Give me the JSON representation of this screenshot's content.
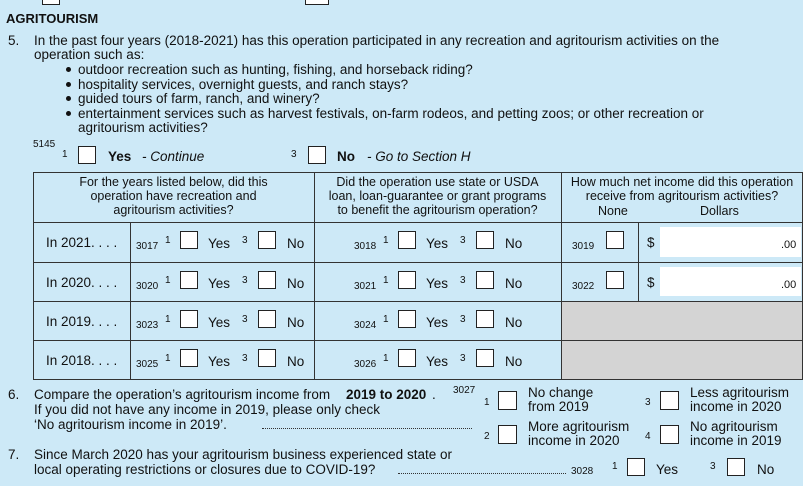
{
  "section_title": "AGRITOURISM",
  "q5": {
    "number": "5.",
    "lines": [
      "In the past four years (2018-2021) has this operation participated in any recreation and agritourism activities on the",
      "operation such as:"
    ],
    "bullets": [
      [
        "outdoor recreation such as hunting, fishing, and horseback riding?"
      ],
      [
        "hospitality services, overnight guests, and ranch stays?"
      ],
      [
        "guided tours of farm, ranch, and winery?"
      ],
      [
        "entertainment services such as harvest festivals, on-farm rodeos, and petting zoos; or other recreation or",
        "agritourism activities?"
      ]
    ],
    "code": "5145",
    "options": [
      {
        "number": "1",
        "label": "Yes",
        "note": "- Continue"
      },
      {
        "number": "3",
        "label": "No",
        "note": "- Go to Section H"
      }
    ]
  },
  "table": {
    "headers": [
      [
        "For the years listed below, did this",
        "operation have recreation and",
        "agritourism activities?"
      ],
      [
        "Did the operation use state or USDA",
        "loan, loan-guarantee or grant programs",
        "to benefit the agritourism operation?"
      ],
      [
        "How much net income did this operation",
        "receive from agritourism activities?"
      ]
    ],
    "subheaders": [
      "None",
      "Dollars"
    ],
    "rows": [
      {
        "label": "In 2021. . . .",
        "recreation": {
          "code": "3017",
          "yes_number": "1",
          "yes": "Yes",
          "no_number": "3",
          "no": "No"
        },
        "assistance": {
          "code": "3018",
          "yes_number": "1",
          "yes": "Yes",
          "no_number": "3",
          "no": "No"
        },
        "income": {
          "code": "3019",
          "currency": "$",
          "cents": ".00"
        }
      },
      {
        "label": "In 2020. . . .",
        "recreation": {
          "code": "3020",
          "yes_number": "1",
          "yes": "Yes",
          "no_number": "3",
          "no": "No"
        },
        "assistance": {
          "code": "3021",
          "yes_number": "1",
          "yes": "Yes",
          "no_number": "3",
          "no": "No"
        },
        "income": {
          "code": "3022",
          "currency": "$",
          "cents": ".00"
        }
      },
      {
        "label": "In 2019. . . .",
        "recreation": {
          "code": "3023",
          "yes_number": "1",
          "yes": "Yes",
          "no_number": "3",
          "no": "No"
        },
        "assistance": {
          "code": "3024",
          "yes_number": "1",
          "yes": "Yes",
          "no_number": "3",
          "no": "No"
        }
      },
      {
        "label": "In 2018. . . .",
        "recreation": {
          "code": "3025",
          "yes_number": "1",
          "yes": "Yes",
          "no_number": "3",
          "no": "No"
        },
        "assistance": {
          "code": "3026",
          "yes_number": "1",
          "yes": "Yes",
          "no_number": "3",
          "no": "No"
        }
      }
    ]
  },
  "q6": {
    "number": "6.",
    "line1_start": "Compare the operation’s agritourism income from ",
    "line1_bold": "2019 to 2020",
    "line1_end": ".",
    "line2": "If you did not have any income in 2019, please only check",
    "line3": "‘No agritourism income in 2019’.",
    "code": "3027",
    "options": [
      {
        "number": "1",
        "lines": [
          "No change",
          "from 2019"
        ]
      },
      {
        "number": "3",
        "lines": [
          "Less agritourism",
          "income in 2020"
        ]
      },
      {
        "number": "2",
        "lines": [
          "More agritourism",
          "income in 2020"
        ]
      },
      {
        "number": "4",
        "lines": [
          "No agritourism",
          "income in 2019"
        ]
      }
    ]
  },
  "q7": {
    "number": "7.",
    "lines": [
      "Since March 2020 has your agritourism business experienced state or",
      "local operating restrictions or closures due to COVID-19?"
    ],
    "code": "3028",
    "options": [
      {
        "number": "1",
        "label": "Yes"
      },
      {
        "number": "3",
        "label": "No"
      }
    ]
  }
}
